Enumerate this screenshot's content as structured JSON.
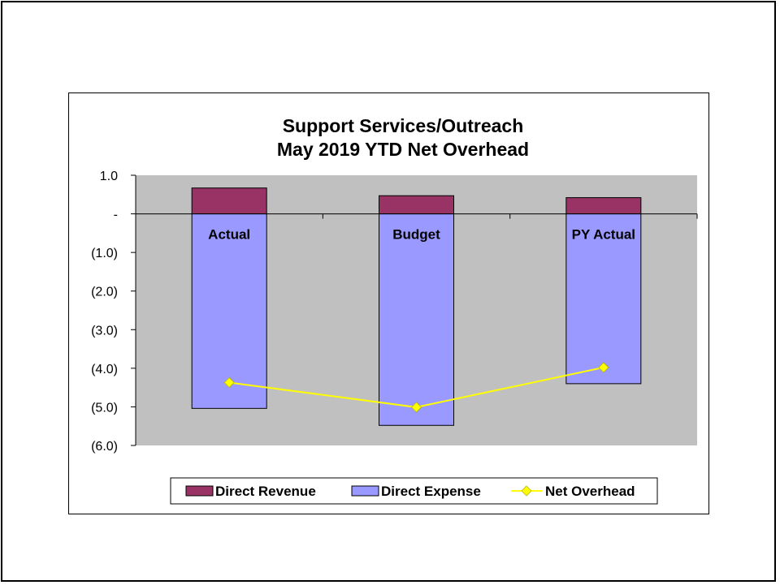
{
  "chart_data": {
    "type": "bar",
    "stacked": true,
    "title": "Support Services/Outreach",
    "subtitle": "May 2019 YTD Net Overhead",
    "categories": [
      "Actual",
      "Budget",
      "PY Actual"
    ],
    "series": [
      {
        "name": "Direct Revenue",
        "type": "bar",
        "color": "#993366",
        "values": [
          0.67,
          0.47,
          0.42
        ]
      },
      {
        "name": "Direct Expense",
        "type": "bar",
        "color": "#9999ff",
        "values": [
          -5.04,
          -5.48,
          -4.4
        ]
      },
      {
        "name": "Net Overhead",
        "type": "line",
        "color": "#ffff00",
        "values": [
          -4.37,
          -5.01,
          -3.98
        ]
      }
    ],
    "ylim": [
      -6,
      1
    ],
    "y_ticks": [
      {
        "value": 1,
        "label": "1.0"
      },
      {
        "value": 0,
        "label": "-"
      },
      {
        "value": -1,
        "label": "(1.0)"
      },
      {
        "value": -2,
        "label": "(2.0)"
      },
      {
        "value": -3,
        "label": "(3.0)"
      },
      {
        "value": -4,
        "label": "(4.0)"
      },
      {
        "value": -5,
        "label": "(5.0)"
      },
      {
        "value": -6,
        "label": "(6.0)"
      }
    ],
    "xlabel": "",
    "ylabel": "",
    "grid": false,
    "legend_position": "bottom",
    "plot_background": "#c0c0c0"
  }
}
